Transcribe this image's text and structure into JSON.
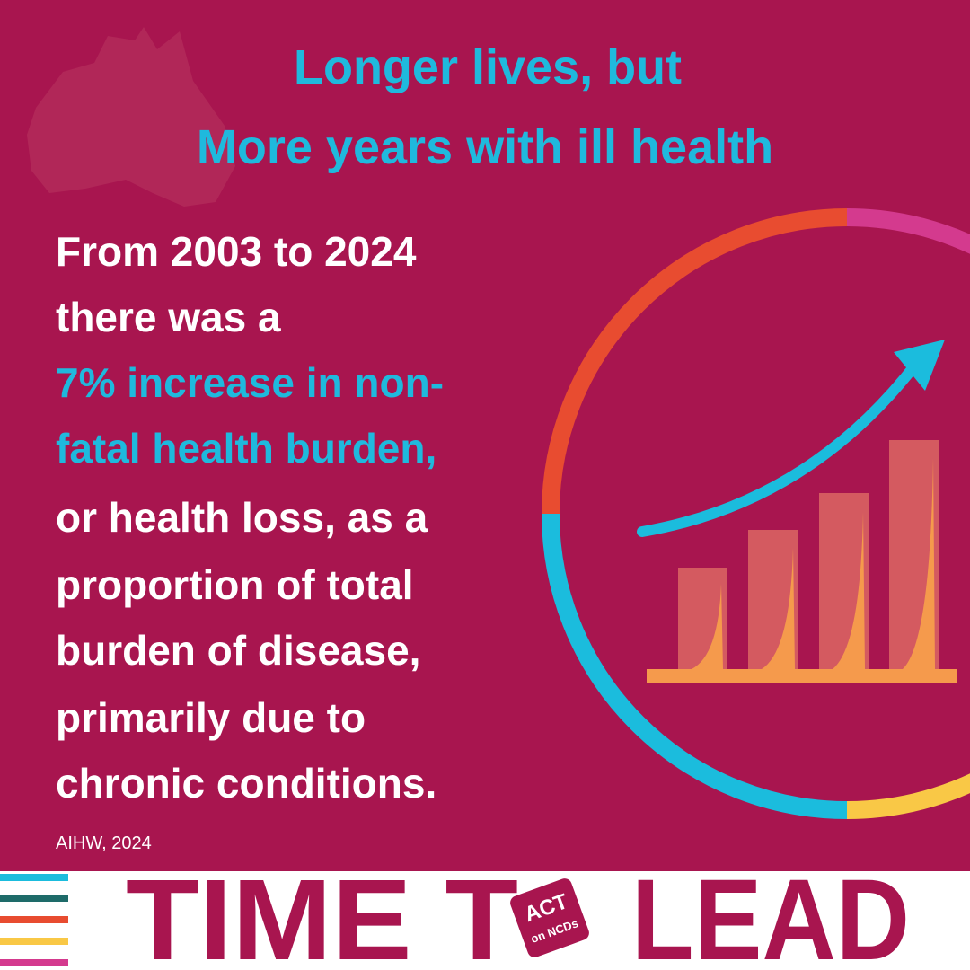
{
  "header": {
    "title_lines": [
      "Longer lives,  but",
      "More years with ill health"
    ]
  },
  "body": {
    "intro_lines": [
      "From 2003 to 2024",
      "there was a"
    ],
    "highlight_lines": [
      "7% increase in non-",
      "fatal health burden,"
    ],
    "rest_lines": [
      "or health loss, as a",
      "proportion of total",
      "burden of disease,",
      "primarily due to",
      "chronic conditions."
    ]
  },
  "source": "AIHW, 2024",
  "footer": {
    "left_text": "TIME T",
    "logo_top": "ACT",
    "logo_bottom": "on NCDs",
    "right_text": "LEAD"
  }
}
